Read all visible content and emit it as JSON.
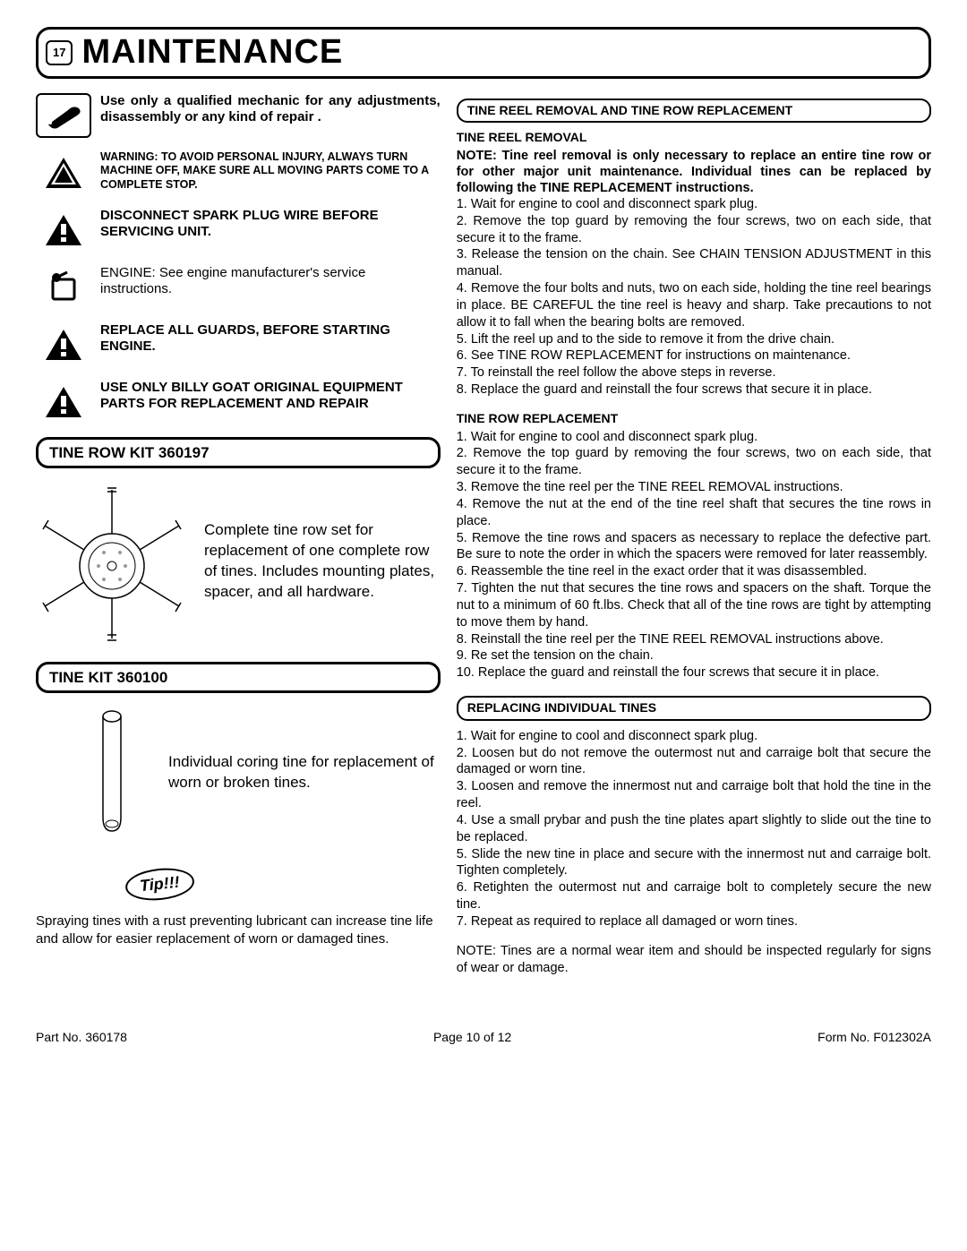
{
  "header": {
    "page_number": "17",
    "title": "MAINTENANCE"
  },
  "left": {
    "mechanic_note": "Use only a qualified mechanic for any adjustments, disassembly or any kind of repair .",
    "warning_small": "WARNING:  TO AVOID PERSONAL INJURY, ALWAYS TURN MACHINE OFF, MAKE SURE ALL MOVING PARTS COME TO A COMPLETE STOP.",
    "disconnect": "DISCONNECT SPARK PLUG WIRE BEFORE SERVICING UNIT.",
    "engine_note": "ENGINE: See engine manufacturer's service  instructions.",
    "guards": "REPLACE ALL GUARDS, BEFORE STARTING ENGINE.",
    "parts": "USE ONLY BILLY GOAT ORIGINAL EQUIPMENT PARTS FOR REPLACEMENT AND REPAIR",
    "tine_row_kit_title": "TINE ROW KIT 360197",
    "tine_row_kit_desc": "Complete tine row set for replacement of one complete row of tines. Includes mounting plates, spacer, and all hardware.",
    "tine_kit_title": "TINE KIT 360100",
    "tine_kit_desc": "Individual coring tine for replacement of worn or broken tines.",
    "tip_label": "Tip!!!",
    "tip_text": "Spraying tines with a rust preventing lubricant can increase tine life and allow for easier replacement of worn or damaged tines."
  },
  "right": {
    "pill1": "TINE REEL REMOVAL AND TINE ROW REPLACEMENT",
    "reel_heading": "TINE REEL REMOVAL",
    "reel_note": "NOTE: Tine reel removal is only necessary to replace an entire tine row or for other major unit maintenance.  Individual tines can be replaced by following the TINE REPLACEMENT instructions.",
    "reel_steps": [
      "1. Wait for engine to cool and disconnect spark plug.",
      "2. Remove the top guard by removing the four screws, two on each side, that secure it to the frame.",
      "3. Release the tension on the chain.  See CHAIN TENSION ADJUSTMENT in this manual.",
      "4. Remove the four bolts and nuts, two on each side, holding the tine reel bearings in place.  BE CAREFUL the tine reel is heavy and sharp.  Take precautions to not allow it to fall when the bearing bolts are removed.",
      "5. Lift the reel up and to the side to remove it from the drive chain.",
      "6. See TINE ROW REPLACEMENT for instructions on maintenance.",
      "7. To reinstall the reel follow the above steps in reverse.",
      "8. Replace the guard and reinstall the four screws that secure it in place."
    ],
    "row_heading": "TINE ROW REPLACEMENT",
    "row_steps": [
      "1. Wait for engine to cool and disconnect spark plug.",
      "2. Remove the top guard by removing the four screws, two on each side, that secure it to the frame.",
      "3. Remove the tine reel per the TINE REEL REMOVAL instructions.",
      "4. Remove the nut at the end of the tine reel shaft that secures the tine rows in place.",
      "5. Remove the tine rows and spacers as necessary to replace the defective part.  Be sure to note the order in which the spacers were removed for later reassembly.",
      "6. Reassemble the tine reel in the exact order that it was disassembled.",
      "7. Tighten the nut that secures the tine rows and spacers on the shaft.  Torque the nut to a minimum of 60 ft.lbs.  Check that all of the tine rows are tight by attempting to move them by hand.",
      "8. Reinstall the tine reel per the TINE REEL REMOVAL instructions above.",
      "9. Re set the tension on the chain.",
      "10. Replace the guard and reinstall the four screws that secure it in place."
    ],
    "pill2": "REPLACING INDIVIDUAL TINES",
    "ind_steps": [
      "1. Wait for engine to cool and disconnect spark plug.",
      "2. Loosen but do not remove the outermost nut and carraige bolt that secure the damaged or worn tine.",
      "3. Loosen and remove the innermost nut and carraige bolt that hold the tine in the reel.",
      "4. Use a small prybar and push the tine plates apart slightly to slide out the tine to be replaced.",
      "5. Slide the new tine in place and secure with the innermost nut and carraige bolt.  Tighten completely.",
      "6. Retighten the outermost nut and carraige bolt to completely secure the new tine.",
      "7. Repeat as required to replace all damaged or worn tines."
    ],
    "ind_note": "NOTE: Tines are a normal wear item and should be inspected regularly for signs of wear or damage."
  },
  "footer": {
    "part": "Part No. 360178",
    "page": "Page 10 of 12",
    "form": "Form No. F012302A"
  }
}
